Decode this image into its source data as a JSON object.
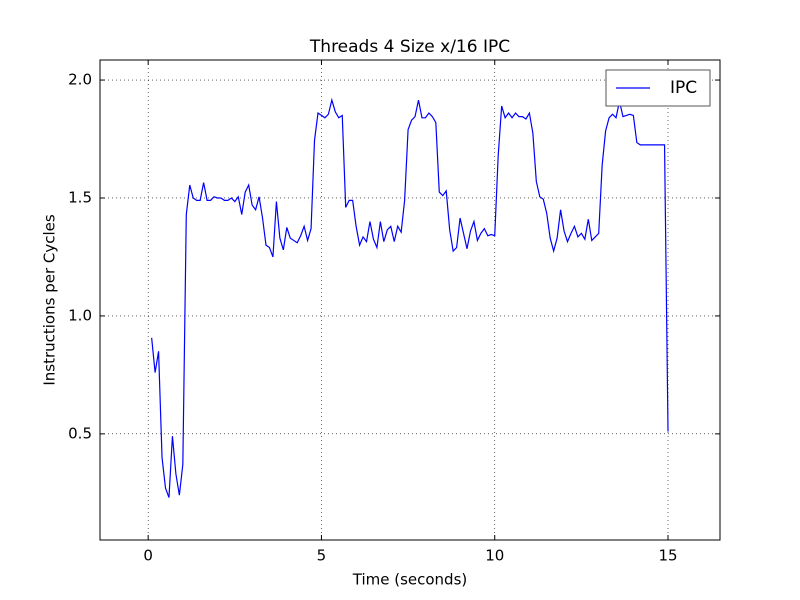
{
  "chart_data": {
    "type": "line",
    "title": "Threads 4 Size x/16 IPC",
    "x_label": "Time (seconds)",
    "y_label": "Instructions per Cycles",
    "x": [
      0.1,
      0.2,
      0.3,
      0.4,
      0.5,
      0.6,
      0.7,
      0.8,
      0.9,
      1.0,
      1.1,
      1.2,
      1.3,
      1.4,
      1.5,
      1.6,
      1.7,
      1.8,
      1.9,
      2.0,
      2.1,
      2.2,
      2.3,
      2.4,
      2.5,
      2.6,
      2.7,
      2.8,
      2.9,
      3.0,
      3.1,
      3.2,
      3.3,
      3.4,
      3.5,
      3.6,
      3.7,
      3.8,
      3.9,
      4.0,
      4.1,
      4.2,
      4.3,
      4.4,
      4.5,
      4.6,
      4.7,
      4.8,
      4.9,
      5.0,
      5.1,
      5.2,
      5.3,
      5.4,
      5.5,
      5.6,
      5.7,
      5.8,
      5.9,
      6.0,
      6.1,
      6.2,
      6.3,
      6.4,
      6.5,
      6.6,
      6.7,
      6.8,
      6.9,
      7.0,
      7.1,
      7.2,
      7.3,
      7.4,
      7.5,
      7.6,
      7.7,
      7.8,
      7.9,
      8.0,
      8.1,
      8.2,
      8.3,
      8.4,
      8.5,
      8.6,
      8.7,
      8.8,
      8.9,
      9.0,
      9.1,
      9.2,
      9.3,
      9.4,
      9.5,
      9.6,
      9.7,
      9.8,
      9.9,
      10.0,
      10.1,
      10.2,
      10.3,
      10.4,
      10.5,
      10.6,
      10.7,
      10.8,
      10.9,
      11.0,
      11.1,
      11.2,
      11.3,
      11.4,
      11.5,
      11.6,
      11.7,
      11.8,
      11.9,
      12.0,
      12.1,
      12.2,
      12.3,
      12.4,
      12.5,
      12.6,
      12.7,
      12.8,
      12.9,
      13.0,
      13.1,
      13.2,
      13.3,
      13.4,
      13.5,
      13.6,
      13.7,
      13.8,
      13.9,
      14.0,
      14.1,
      14.2,
      14.3,
      14.4,
      14.5,
      14.6,
      14.7,
      14.8,
      14.9,
      15.0
    ],
    "series": [
      {
        "name": "IPC",
        "color": "#0000ff",
        "values": [
          0.907,
          0.76,
          0.85,
          0.4,
          0.27,
          0.23,
          0.49,
          0.33,
          0.24,
          0.37,
          1.43,
          1.555,
          1.5,
          1.49,
          1.49,
          1.565,
          1.49,
          1.49,
          1.505,
          1.5,
          1.5,
          1.49,
          1.49,
          1.5,
          1.485,
          1.505,
          1.43,
          1.525,
          1.555,
          1.47,
          1.45,
          1.505,
          1.415,
          1.3,
          1.29,
          1.25,
          1.485,
          1.33,
          1.28,
          1.375,
          1.33,
          1.32,
          1.31,
          1.34,
          1.38,
          1.32,
          1.37,
          1.745,
          1.86,
          1.85,
          1.84,
          1.855,
          1.915,
          1.865,
          1.84,
          1.85,
          1.46,
          1.49,
          1.49,
          1.38,
          1.3,
          1.335,
          1.315,
          1.4,
          1.325,
          1.29,
          1.4,
          1.315,
          1.365,
          1.38,
          1.315,
          1.38,
          1.355,
          1.49,
          1.79,
          1.83,
          1.845,
          1.915,
          1.84,
          1.84,
          1.86,
          1.845,
          1.82,
          1.525,
          1.51,
          1.53,
          1.365,
          1.275,
          1.29,
          1.415,
          1.35,
          1.285,
          1.36,
          1.4,
          1.32,
          1.35,
          1.37,
          1.34,
          1.345,
          1.34,
          1.68,
          1.89,
          1.84,
          1.86,
          1.84,
          1.86,
          1.845,
          1.845,
          1.835,
          1.86,
          1.775,
          1.57,
          1.505,
          1.495,
          1.435,
          1.33,
          1.275,
          1.33,
          1.45,
          1.36,
          1.315,
          1.35,
          1.38,
          1.335,
          1.35,
          1.325,
          1.41,
          1.32,
          1.335,
          1.35,
          1.64,
          1.785,
          1.84,
          1.855,
          1.84,
          1.91,
          1.845,
          1.85,
          1.855,
          1.85,
          1.735,
          1.725,
          1.725,
          1.725,
          1.725,
          1.725,
          1.725,
          1.725,
          1.725,
          0.51
        ]
      }
    ],
    "xlim": [
      -1.39,
      16.5
    ],
    "ylim": [
      0.05,
      2.085
    ],
    "xticks": [
      0,
      5,
      10,
      15
    ],
    "yticks": [
      {
        "value": 0.5,
        "label": "0.5"
      },
      {
        "value": 1.0,
        "label": "1.0"
      },
      {
        "value": 1.5,
        "label": "1.5"
      },
      {
        "value": 2.0,
        "label": "2.0"
      }
    ],
    "grid": true,
    "legend": "upper right"
  }
}
